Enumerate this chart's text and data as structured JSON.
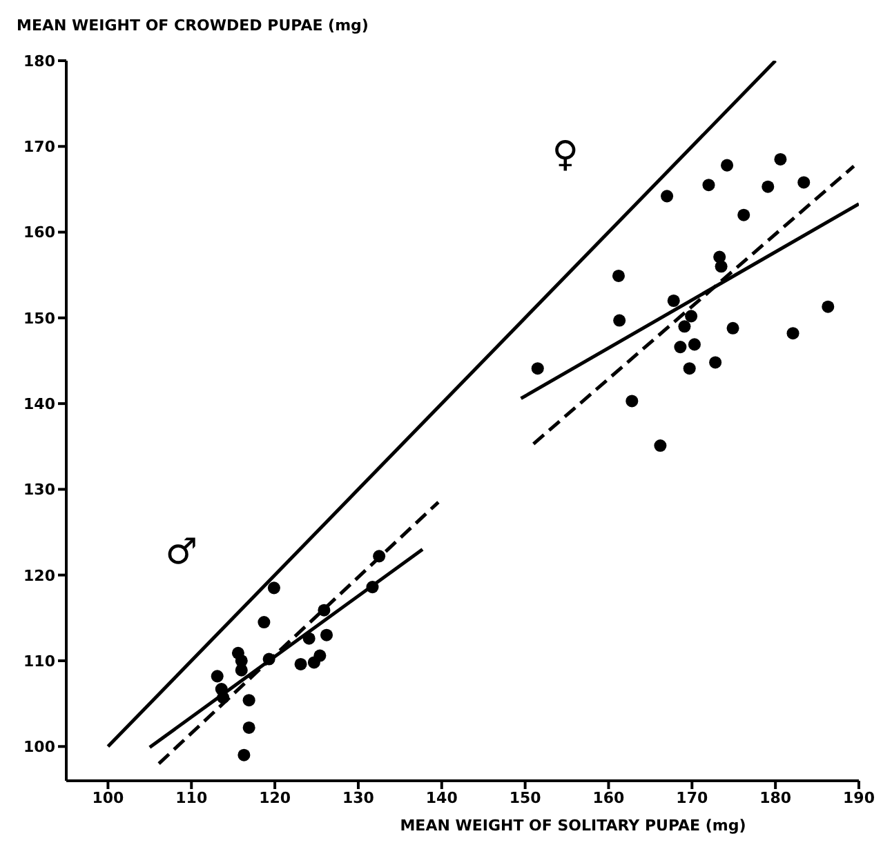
{
  "chart_data": {
    "type": "scatter",
    "xlabel": "MEAN WEIGHT OF SOLITARY PUPAE (mg)",
    "ylabel": "MEAN WEIGHT OF CROWDED PUPAE (mg)",
    "xlim": [
      95,
      190
    ],
    "ylim": [
      96,
      180
    ],
    "xticks": [
      100,
      110,
      120,
      130,
      140,
      150,
      160,
      170,
      180,
      190
    ],
    "yticks": [
      100,
      110,
      120,
      130,
      140,
      150,
      160,
      170,
      180
    ],
    "grid": false,
    "series": [
      {
        "color": "#000000",
        "marker": "circle",
        "x": [
          119.9,
          118.7,
          115.6,
          116,
          116,
          113.1,
          113.6,
          113.8,
          116.9,
          116.9,
          116.3,
          119.3,
          123.1,
          124.7,
          125.4,
          124.1,
          126.2,
          125.9,
          131.7,
          132.5
        ],
        "values": [
          118.5,
          114.5,
          110.9,
          110,
          108.9,
          108.2,
          106.7,
          105.7,
          105.4,
          102.2,
          99,
          110.2,
          109.6,
          109.8,
          110.6,
          112.6,
          113,
          115.9,
          118.6,
          122.2
        ]
      },
      {
        "color": "#000000",
        "marker": "circle",
        "x": [
          174.2,
          180.6,
          172,
          179.1,
          183.4,
          167,
          176.2,
          173.3,
          173.5,
          161.2,
          161.3,
          151.5,
          167.8,
          169.9,
          169.1,
          168.6,
          170.3,
          169.7,
          172.8,
          174.9,
          182.1,
          186.3,
          162.8,
          166.2
        ],
        "values": [
          167.8,
          168.5,
          165.5,
          165.3,
          165.8,
          164.2,
          162,
          157.1,
          156,
          154.9,
          149.7,
          144.1,
          152,
          150.2,
          149,
          146.6,
          146.9,
          144.1,
          144.8,
          148.8,
          148.2,
          151.3,
          140.3,
          135.1
        ]
      },
      {
        "type": "line",
        "color": "#000000",
        "marker": "none",
        "line_style": "solid",
        "x": [
          100,
          180
        ],
        "values": [
          100,
          180
        ]
      },
      {
        "type": "line",
        "color": "#000000",
        "marker": "none",
        "line_style": "solid",
        "x": [
          105,
          137.7
        ],
        "values": [
          99.9,
          123
        ]
      },
      {
        "type": "line",
        "color": "#000000",
        "marker": "none",
        "line_style": "dashed",
        "x": [
          106.1,
          139.6
        ],
        "values": [
          98,
          128.5
        ]
      },
      {
        "type": "line",
        "color": "#000000",
        "marker": "none",
        "line_style": "solid",
        "x": [
          149.5,
          190
        ],
        "values": [
          140.6,
          163.3
        ]
      },
      {
        "type": "line",
        "color": "#000000",
        "marker": "none",
        "line_style": "dashed",
        "x": [
          151,
          189.4
        ],
        "values": [
          135.3,
          167.7
        ]
      }
    ],
    "annotations": [
      "♂",
      "♀"
    ]
  }
}
